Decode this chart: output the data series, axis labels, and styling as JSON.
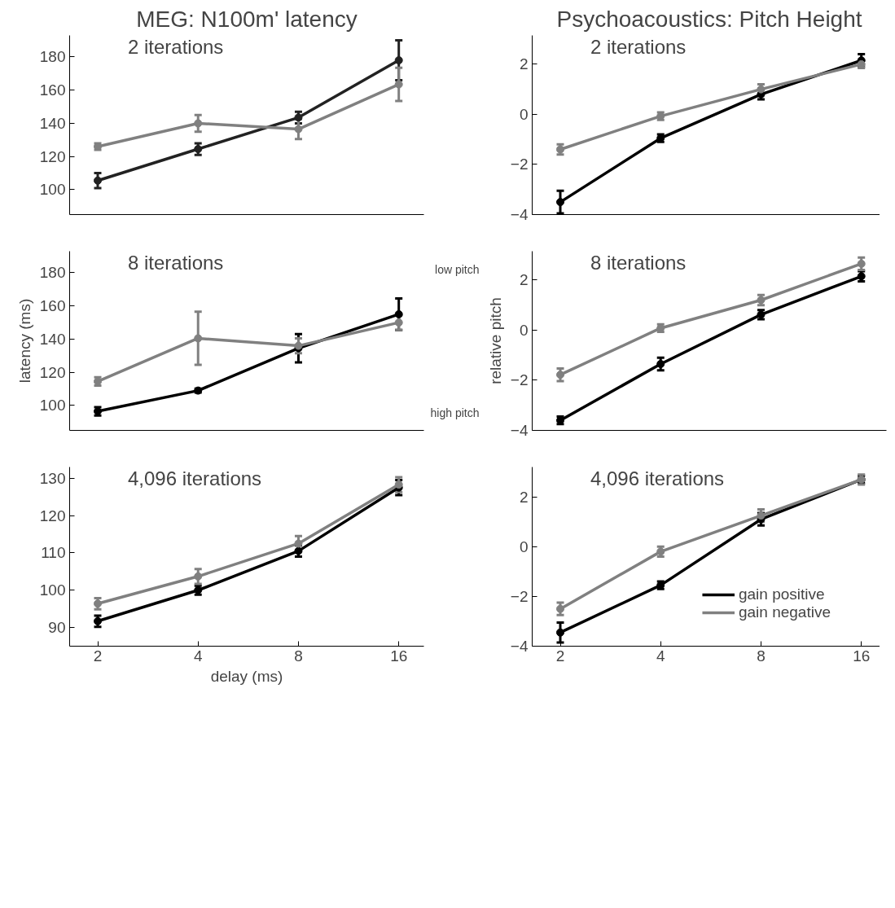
{
  "chart_data": [
    {
      "type": "line",
      "title": "MEG: N100m' latency",
      "subtitle": "2 iterations",
      "categories": [
        "2",
        "4",
        "8",
        "16"
      ],
      "ylim": [
        85,
        193
      ],
      "yticks": [
        100,
        120,
        140,
        160,
        180
      ],
      "tick_labels": "y",
      "grid": false,
      "marker": "circle",
      "line_style": "solid",
      "series": [
        {
          "color": "#222222",
          "values": [
            105.5,
            124.5,
            143.5,
            178
          ],
          "errors": [
            4.5,
            3.5,
            3.5,
            12
          ]
        },
        {
          "color": "#808080",
          "values": [
            126,
            140,
            136.5,
            163.5
          ],
          "errors": [
            2,
            5,
            6,
            10
          ]
        }
      ]
    },
    {
      "type": "line",
      "title": "Psychoacoustics: Pitch Height",
      "subtitle": "2 iterations",
      "categories": [
        "2",
        "4",
        "8",
        "16"
      ],
      "ylim": [
        -4,
        3.15
      ],
      "yticks": [
        -4,
        -2,
        0,
        2
      ],
      "tick_labels": "y",
      "grid": false,
      "marker": "circle",
      "line_style": "solid",
      "series": [
        {
          "color": "#000000",
          "values": [
            -3.5,
            -0.95,
            0.8,
            2.15
          ],
          "errors": [
            0.45,
            0.15,
            0.2,
            0.25
          ]
        },
        {
          "color": "#808080",
          "values": [
            -1.4,
            -0.07,
            1.0,
            2.0
          ],
          "errors": [
            0.2,
            0.15,
            0.2,
            0.15
          ]
        }
      ]
    },
    {
      "type": "line",
      "subtitle": "8 iterations",
      "ylabel": "latency (ms)",
      "categories": [
        "2",
        "4",
        "8",
        "16"
      ],
      "ylim": [
        85,
        193
      ],
      "yticks": [
        100,
        120,
        140,
        160,
        180
      ],
      "tick_labels": "y",
      "grid": false,
      "marker": "circle",
      "line_style": "solid",
      "series": [
        {
          "color": "#000000",
          "values": [
            96.5,
            109,
            134.5,
            155
          ],
          "errors": [
            2.5,
            1.2,
            8.5,
            9.5
          ]
        },
        {
          "color": "#808080",
          "values": [
            114.5,
            140.5,
            136,
            150
          ],
          "errors": [
            2.5,
            16,
            4.5,
            4.5
          ]
        }
      ]
    },
    {
      "type": "line",
      "subtitle": "8 iterations",
      "ylabel": "relative pitch",
      "annotations": [
        "low pitch",
        "high pitch"
      ],
      "categories": [
        "2",
        "4",
        "8",
        "16"
      ],
      "ylim": [
        -4,
        3.15
      ],
      "yticks": [
        -4,
        -2,
        0,
        2
      ],
      "tick_labels": "y",
      "grid": false,
      "marker": "circle",
      "line_style": "solid",
      "series": [
        {
          "color": "#000000",
          "values": [
            -3.6,
            -1.35,
            0.62,
            2.15
          ],
          "errors": [
            0.15,
            0.25,
            0.18,
            0.2
          ]
        },
        {
          "color": "#808080",
          "values": [
            -1.78,
            0.08,
            1.2,
            2.65
          ],
          "errors": [
            0.25,
            0.15,
            0.2,
            0.25
          ]
        }
      ]
    },
    {
      "type": "line",
      "subtitle": "4,096 iterations",
      "xlabel": "delay (ms)",
      "categories": [
        "2",
        "4",
        "8",
        "16"
      ],
      "ylim": [
        85,
        133
      ],
      "yticks": [
        90,
        100,
        110,
        120,
        130
      ],
      "grid": false,
      "marker": "circle",
      "line_style": "solid",
      "series": [
        {
          "color": "#000000",
          "values": [
            91.7,
            100,
            110.5,
            127.5
          ],
          "errors": [
            1.5,
            1.2,
            1.5,
            2
          ]
        },
        {
          "color": "#808080",
          "values": [
            96.4,
            103.7,
            112.5,
            128.3
          ],
          "errors": [
            1.5,
            2,
            2,
            2
          ]
        }
      ]
    },
    {
      "type": "line",
      "subtitle": "4,096 iterations",
      "categories": [
        "2",
        "4",
        "8",
        "16"
      ],
      "ylim": [
        -4,
        3.2
      ],
      "yticks": [
        -4,
        -2,
        0,
        2
      ],
      "grid": false,
      "marker": "circle",
      "line_style": "solid",
      "legend": "bottom right",
      "series": [
        {
          "name": "gain positive",
          "color": "#000000",
          "values": [
            -3.45,
            -1.55,
            1.1,
            2.7
          ],
          "errors": [
            0.4,
            0.15,
            0.25,
            0.15
          ]
        },
        {
          "name": "gain negative",
          "color": "#808080",
          "values": [
            -2.5,
            -0.2,
            1.25,
            2.7
          ],
          "errors": [
            0.25,
            0.2,
            0.25,
            0.2
          ]
        }
      ]
    }
  ]
}
